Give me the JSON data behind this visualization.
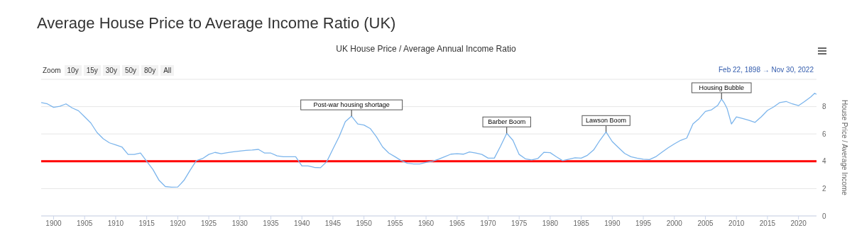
{
  "chart_data": {
    "type": "line",
    "title": "Average House Price to Average Income Ratio (UK)",
    "subtitle": "UK House Price / Average Annual Income Ratio",
    "ylabel": "House Price / Average Income",
    "x": [
      1898,
      1899,
      1900,
      1901,
      1902,
      1903,
      1904,
      1905,
      1906,
      1907,
      1908,
      1909,
      1910,
      1911,
      1912,
      1913,
      1914,
      1915,
      1916,
      1917,
      1918,
      1919,
      1920,
      1921,
      1922,
      1923,
      1924,
      1925,
      1926,
      1927,
      1928,
      1929,
      1930,
      1931,
      1932,
      1933,
      1934,
      1935,
      1936,
      1937,
      1938,
      1939,
      1940,
      1941,
      1942,
      1943,
      1944,
      1945,
      1946,
      1947,
      1948,
      1949,
      1950,
      1951,
      1952,
      1953,
      1954,
      1955,
      1956,
      1957,
      1958,
      1959,
      1960,
      1961,
      1962,
      1963,
      1964,
      1965,
      1966,
      1967,
      1968,
      1969,
      1970,
      1971,
      1972,
      1973,
      1974,
      1975,
      1976,
      1977,
      1978,
      1979,
      1980,
      1981,
      1982,
      1983,
      1984,
      1985,
      1986,
      1987,
      1988,
      1989,
      1990,
      1991,
      1992,
      1993,
      1994,
      1995,
      1996,
      1997,
      1998,
      1999,
      2000,
      2001,
      2002,
      2003,
      2004,
      2005,
      2006,
      2007,
      2007.6,
      2008,
      2008.5,
      2009.2,
      2010,
      2011,
      2012,
      2013,
      2014,
      2015,
      2016,
      2017,
      2018,
      2019,
      2020,
      2021,
      2022,
      2022.6,
      2022.9
    ],
    "series": [
      {
        "color": "#7cb5ec",
        "values": [
          8.3,
          8.2,
          7.95,
          8.03,
          8.2,
          7.9,
          7.7,
          7.25,
          6.8,
          6.1,
          5.65,
          5.35,
          5.2,
          5.05,
          4.5,
          4.5,
          4.6,
          4.0,
          3.4,
          2.6,
          2.15,
          2.1,
          2.12,
          2.6,
          3.35,
          4.05,
          4.2,
          4.5,
          4.65,
          4.55,
          4.63,
          4.7,
          4.75,
          4.8,
          4.82,
          4.87,
          4.6,
          4.6,
          4.4,
          4.33,
          4.33,
          4.33,
          3.66,
          3.66,
          3.55,
          3.53,
          3.97,
          4.9,
          5.8,
          6.9,
          7.3,
          6.73,
          6.65,
          6.4,
          5.8,
          5.05,
          4.6,
          4.33,
          4.05,
          3.85,
          3.8,
          3.8,
          3.92,
          4.0,
          4.15,
          4.33,
          4.52,
          4.55,
          4.52,
          4.68,
          4.6,
          4.5,
          4.23,
          4.23,
          5.1,
          6.05,
          5.53,
          4.5,
          4.18,
          4.1,
          4.2,
          4.66,
          4.63,
          4.33,
          4.05,
          4.15,
          4.25,
          4.23,
          4.44,
          4.83,
          5.53,
          6.15,
          5.44,
          5.0,
          4.57,
          4.33,
          4.23,
          4.15,
          4.13,
          4.33,
          4.66,
          4.99,
          5.27,
          5.53,
          5.7,
          6.73,
          7.13,
          7.65,
          7.77,
          8.1,
          8.55,
          8.3,
          7.86,
          6.73,
          7.25,
          7.13,
          7.0,
          6.85,
          7.25,
          7.72,
          7.98,
          8.3,
          8.38,
          8.2,
          8.07,
          8.38,
          8.72,
          8.98,
          8.9
        ]
      }
    ],
    "xlim": [
      1898,
      2022.9
    ],
    "xticks": [
      1900,
      1905,
      1910,
      1915,
      1920,
      1925,
      1930,
      1935,
      1940,
      1945,
      1950,
      1955,
      1960,
      1965,
      1970,
      1975,
      1980,
      1985,
      1990,
      1995,
      2000,
      2005,
      2010,
      2015,
      2020
    ],
    "ylim": [
      0,
      10
    ],
    "yticks": [
      0,
      2,
      4,
      6,
      8,
      {
        "value": 10,
        "label": null
      }
    ],
    "grid": "y",
    "marker": "none",
    "line_style": "solid",
    "legend": false,
    "ref_lines": [
      {
        "axis": "y",
        "value": 4,
        "color": "#ff0000"
      }
    ],
    "annotations": [
      {
        "text": "Post-war housing shortage",
        "x": 1948,
        "y": 7.3
      },
      {
        "text": "Barber Boom",
        "x": 1973,
        "y": 6.05
      },
      {
        "text": "Lawson Boom",
        "x": 1989,
        "y": 6.15
      },
      {
        "text": "Housing Bubble",
        "x": 2007.6,
        "y": 8.55
      },
      "Zoom",
      "10y",
      "15y",
      "30y",
      "50y",
      "80y",
      "All",
      "Feb 22, 1898 → Nov 30, 2022"
    ]
  }
}
